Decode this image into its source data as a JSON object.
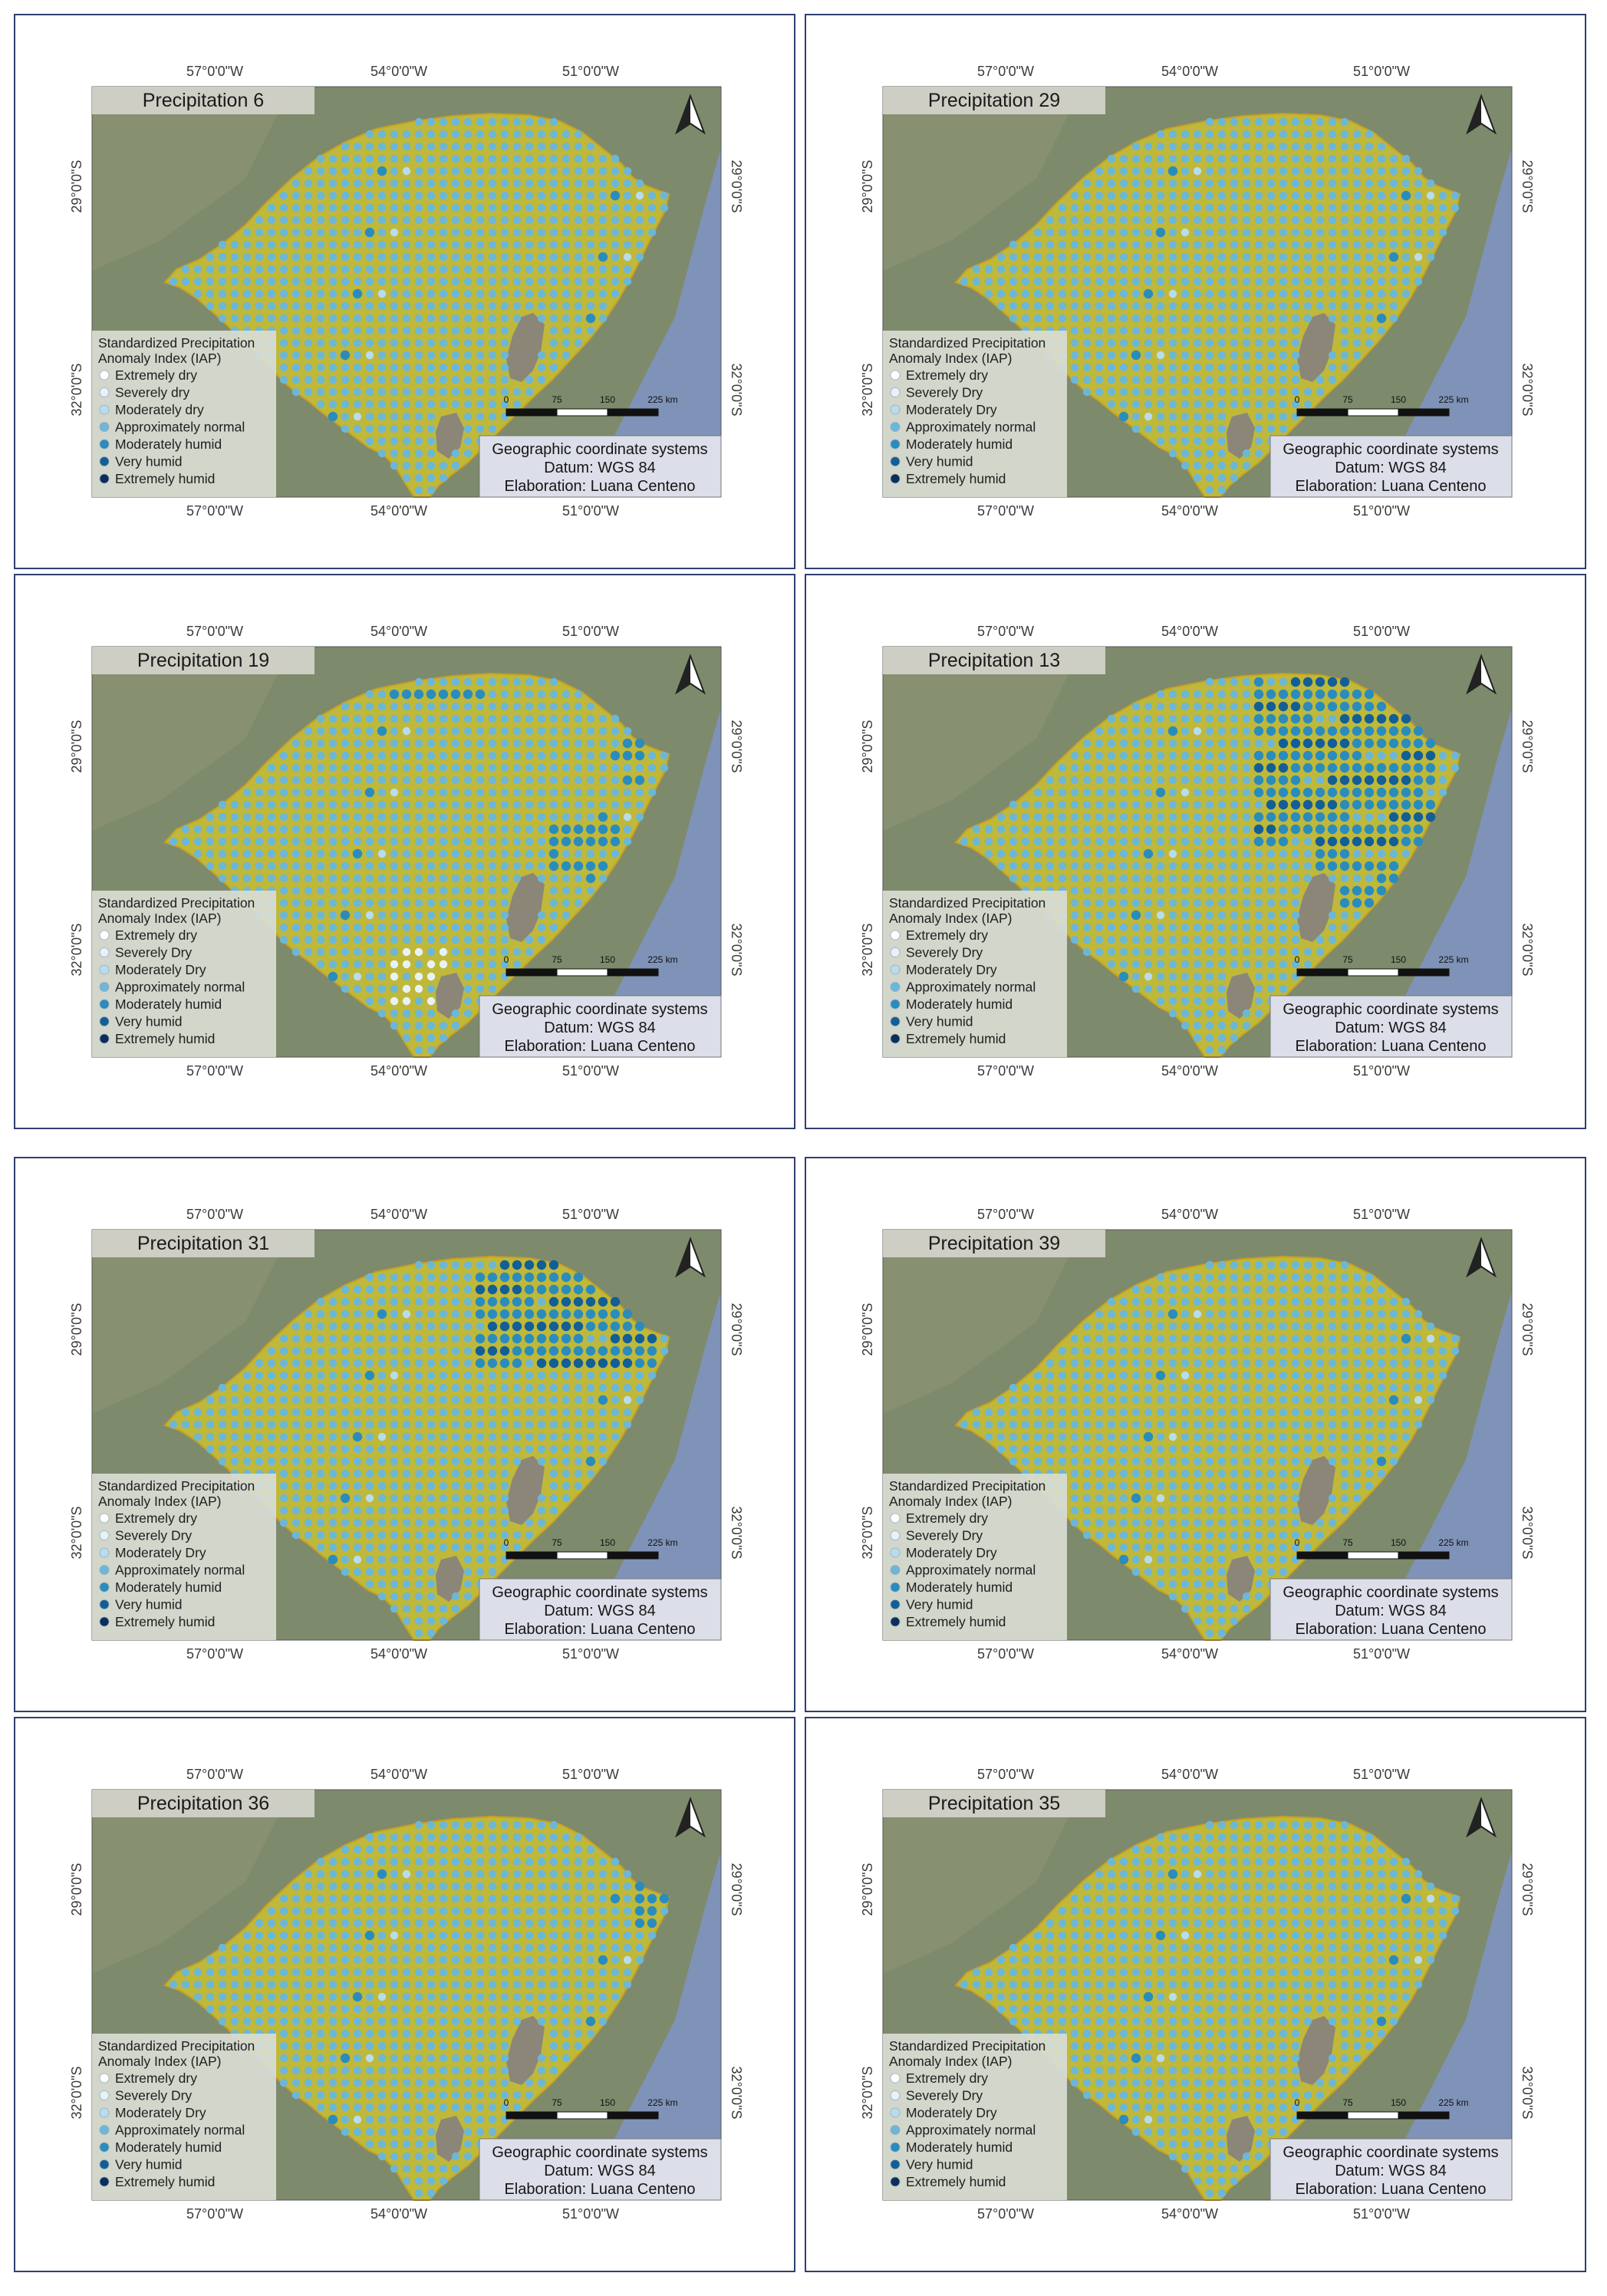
{
  "axes": {
    "top_lon": [
      "57°0'0\"W",
      "54°0'0\"W",
      "51°0'0\"W"
    ],
    "bottom_lon": [
      "57°0'0\"W",
      "54°0'0\"W",
      "51°0'0\"W"
    ],
    "lat": [
      "29°0'0\"S",
      "32°0'0\"S"
    ]
  },
  "legend_title_line1": "Standardized Precipitation",
  "legend_title_line2": "Anomaly Index (IAP)",
  "scale_bar": {
    "labels": [
      "0",
      "75",
      "150",
      "225 km"
    ]
  },
  "info_box": {
    "line1": "Geographic coordinate systems",
    "line2": "Datum: WGS 84",
    "line3": "Elaboration: Luana Centeno"
  },
  "colors": {
    "grid_dot": "#6cb7d7",
    "land_fill": "#bfb83a",
    "ocean": "#7f93b8",
    "terrain": "#7e8a6c",
    "lagoon": "#8b8678",
    "panel_border": "#2f3f6f",
    "legend_bg": "#d9dcd4"
  },
  "panels": [
    {
      "title": "Precipitation 6",
      "legend": [
        "Extremely dry",
        "Severely dry",
        "Moderately dry",
        "Approximately normal",
        "Moderately humid",
        "Very humid",
        "Extremely humid"
      ],
      "legend_colors": [
        "#ffffff",
        "#e7f2f8",
        "#b8dcee",
        "#6cb7d7",
        "#2a8cbd",
        "#125e96",
        "#0a2f5c"
      ],
      "humid_zone": "none"
    },
    {
      "title": "Precipitation 29",
      "legend": [
        "Extremely dry",
        "Severely Dry",
        "Moderately Dry",
        "Approximately normal",
        "Moderately humid",
        "Very humid",
        "Extremely humid"
      ],
      "legend_colors": [
        "#ffffff",
        "#e7f2f8",
        "#b8dcee",
        "#6cb7d7",
        "#2a8cbd",
        "#125e96",
        "#0a2f5c"
      ],
      "humid_zone": "none"
    },
    {
      "title": "Precipitation 19",
      "legend": [
        "Extremely dry",
        "Severely Dry",
        "Moderately Dry",
        "Approximately normal",
        "Moderately humid",
        "Very humid",
        "Extremely humid"
      ],
      "legend_colors": [
        "#ffffff",
        "#e7f2f8",
        "#b8dcee",
        "#6cb7d7",
        "#2a8cbd",
        "#125e96",
        "#0a2f5c"
      ],
      "humid_zone": "north-and-lagoon",
      "dry_zone": "south"
    },
    {
      "title": "Precipitation 13",
      "legend": [
        "Extremely dry",
        "Severely Dry",
        "Moderately Dry",
        "Approximately normal",
        "Moderately humid",
        "Very humid",
        "Extremely humid"
      ],
      "legend_colors": [
        "#ffffff",
        "#e7f2f8",
        "#b8dcee",
        "#6cb7d7",
        "#2a8cbd",
        "#125e96",
        "#0a2f5c"
      ],
      "humid_zone": "northeast-large"
    },
    {
      "title": "Precipitation 31",
      "legend": [
        "Extremely dry",
        "Severely Dry",
        "Moderately Dry",
        "Approximately normal",
        "Moderately humid",
        "Very humid",
        "Extremely humid"
      ],
      "legend_colors": [
        "#ffffff",
        "#e7f2f8",
        "#b8dcee",
        "#6cb7d7",
        "#2a8cbd",
        "#125e96",
        "#0a2f5c"
      ],
      "humid_zone": "northeast"
    },
    {
      "title": "Precipitation 39",
      "legend": [
        "Extremely dry",
        "Severely Dry",
        "Moderately Dry",
        "Approximately normal",
        "Moderately humid",
        "Very humid",
        "Extremely humid"
      ],
      "legend_colors": [
        "#ffffff",
        "#e7f2f8",
        "#b8dcee",
        "#6cb7d7",
        "#2a8cbd",
        "#125e96",
        "#0a2f5c"
      ],
      "humid_zone": "none"
    },
    {
      "title": "Precipitation 36",
      "legend": [
        "Extremely dry",
        "Severely Dry",
        "Moderately Dry",
        "Approximately normal",
        "Moderately humid",
        "Very humid",
        "Extremely humid"
      ],
      "legend_colors": [
        "#ffffff",
        "#e7f2f8",
        "#b8dcee",
        "#6cb7d7",
        "#2a8cbd",
        "#125e96",
        "#0a2f5c"
      ],
      "humid_zone": "coast-strip"
    },
    {
      "title": "Precipitation 35",
      "legend": [
        "Extremely dry",
        "Severely Dry",
        "Moderately Dry",
        "Approximately normal",
        "Moderately humid",
        "Very humid",
        "Extremely humid"
      ],
      "legend_colors": [
        "#ffffff",
        "#e7f2f8",
        "#b8dcee",
        "#6cb7d7",
        "#2a8cbd",
        "#125e96",
        "#0a2f5c"
      ],
      "humid_zone": "none"
    }
  ]
}
